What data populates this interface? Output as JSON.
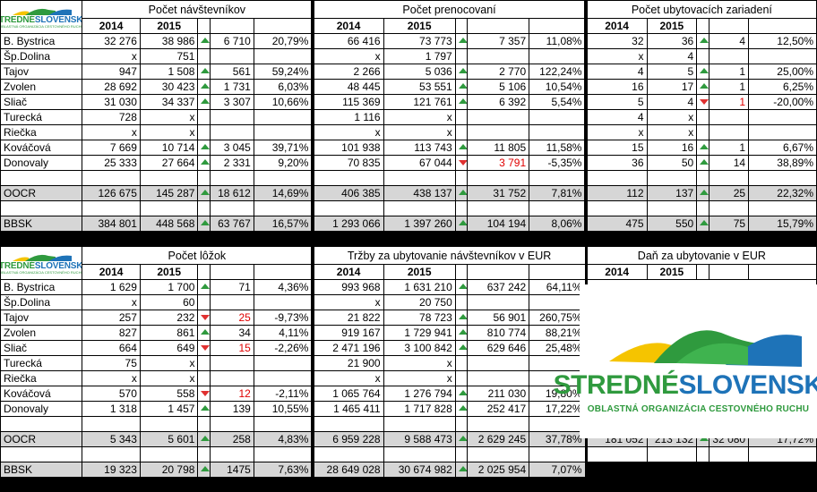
{
  "brand": {
    "word1": "STREDNÉ",
    "word2": "SLOVENSKO",
    "tagline": "OBLASTNÁ ORGANIZÁCIA CESTOVNÉHO RUCHU",
    "colors": {
      "green": "#2f9a3e",
      "blue": "#1e73b8",
      "yellow": "#f5c400",
      "up": "#2f9a3e",
      "down": "#e03030"
    }
  },
  "top": {
    "sections": [
      {
        "title": "Počet návštevníkov",
        "years": [
          "2014",
          "2015"
        ]
      },
      {
        "title": "Počet prenocovaní",
        "years": [
          "2014",
          "2015"
        ]
      },
      {
        "title": "Počet ubytovacích zariadení",
        "years": [
          "2014",
          "2015"
        ]
      }
    ],
    "rows": [
      {
        "label": "B. Bystrica",
        "cells": [
          [
            "32 276",
            "38 986",
            "up",
            "6 710",
            "20,79%"
          ],
          [
            "66 416",
            "73 773",
            "up",
            "7 357",
            "11,08%"
          ],
          [
            "32",
            "36",
            "up",
            "4",
            "12,50%"
          ]
        ]
      },
      {
        "label": "Šp.Dolina",
        "cells": [
          [
            "x",
            "751",
            "",
            "",
            ""
          ],
          [
            "x",
            "1 797",
            "",
            "",
            ""
          ],
          [
            "x",
            "4",
            "",
            "",
            ""
          ]
        ]
      },
      {
        "label": "Tajov",
        "cells": [
          [
            "947",
            "1 508",
            "up",
            "561",
            "59,24%"
          ],
          [
            "2 266",
            "5 036",
            "up",
            "2 770",
            "122,24%"
          ],
          [
            "4",
            "5",
            "up",
            "1",
            "25,00%"
          ]
        ]
      },
      {
        "label": "Zvolen",
        "cells": [
          [
            "28 692",
            "30 423",
            "up",
            "1 731",
            "6,03%"
          ],
          [
            "48 445",
            "53 551",
            "up",
            "5 106",
            "10,54%"
          ],
          [
            "16",
            "17",
            "up",
            "1",
            "6,25%"
          ]
        ]
      },
      {
        "label": "Sliač",
        "cells": [
          [
            "31 030",
            "34 337",
            "up",
            "3 307",
            "10,66%"
          ],
          [
            "115 369",
            "121 761",
            "up",
            "6 392",
            "5,54%"
          ],
          [
            "5",
            "4",
            "down",
            "1",
            "-20,00%"
          ]
        ]
      },
      {
        "label": "Turecká",
        "cells": [
          [
            "728",
            "x",
            "",
            "",
            ""
          ],
          [
            "1 116",
            "x",
            "",
            "",
            ""
          ],
          [
            "4",
            "x",
            "",
            "",
            ""
          ]
        ]
      },
      {
        "label": "Riečka",
        "cells": [
          [
            "x",
            "x",
            "",
            "",
            ""
          ],
          [
            "x",
            "x",
            "",
            "",
            ""
          ],
          [
            "x",
            "x",
            "",
            "",
            ""
          ]
        ]
      },
      {
        "label": "Kováčová",
        "cells": [
          [
            "7 669",
            "10 714",
            "up",
            "3 045",
            "39,71%"
          ],
          [
            "101 938",
            "113 743",
            "up",
            "11 805",
            "11,58%"
          ],
          [
            "15",
            "16",
            "up",
            "1",
            "6,67%"
          ]
        ]
      },
      {
        "label": "Donovaly",
        "cells": [
          [
            "25 333",
            "27 664",
            "up",
            "2 331",
            "9,20%"
          ],
          [
            "70 835",
            "67 044",
            "down",
            "3 791",
            "-5,35%"
          ],
          [
            "36",
            "50",
            "up",
            "14",
            "38,89%"
          ]
        ]
      }
    ],
    "oocr": {
      "label": "OOCR",
      "cells": [
        [
          "126 675",
          "145 287",
          "up",
          "18 612",
          "14,69%"
        ],
        [
          "406 385",
          "438 137",
          "up",
          "31 752",
          "7,81%"
        ],
        [
          "112",
          "137",
          "up",
          "25",
          "22,32%"
        ]
      ]
    },
    "bbsk": {
      "label": "BBSK",
      "cells": [
        [
          "384 801",
          "448 568",
          "up",
          "63 767",
          "16,57%"
        ],
        [
          "1 293 066",
          "1 397 260",
          "up",
          "104 194",
          "8,06%"
        ],
        [
          "475",
          "550",
          "up",
          "75",
          "15,79%"
        ]
      ]
    }
  },
  "bottom": {
    "sections": [
      {
        "title": "Počet lôžok",
        "years": [
          "2014",
          "2015"
        ]
      },
      {
        "title": "Tržby za ubytovanie návštevníkov v EUR",
        "years": [
          "2014",
          "2015"
        ]
      },
      {
        "title": "Daň za ubytovanie v EUR",
        "years": [
          "2014",
          "2015"
        ]
      }
    ],
    "rows": [
      {
        "label": "B. Bystrica",
        "cells": [
          [
            "1 629",
            "1 700",
            "up",
            "71",
            "4,36%"
          ],
          [
            "993 968",
            "1 631 210",
            "up",
            "637 242",
            "64,11%"
          ]
        ]
      },
      {
        "label": "Šp.Dolina",
        "cells": [
          [
            "x",
            "60",
            "",
            "",
            ""
          ],
          [
            "x",
            "20 750",
            "",
            "",
            ""
          ]
        ]
      },
      {
        "label": "Tajov",
        "cells": [
          [
            "257",
            "232",
            "down",
            "25",
            "-9,73%"
          ],
          [
            "21 822",
            "78 723",
            "up",
            "56 901",
            "260,75%"
          ]
        ]
      },
      {
        "label": "Zvolen",
        "cells": [
          [
            "827",
            "861",
            "up",
            "34",
            "4,11%"
          ],
          [
            "919 167",
            "1 729 941",
            "up",
            "810 774",
            "88,21%"
          ]
        ]
      },
      {
        "label": "Sliač",
        "cells": [
          [
            "664",
            "649",
            "down",
            "15",
            "-2,26%"
          ],
          [
            "2 471 196",
            "3 100 842",
            "up",
            "629 646",
            "25,48%"
          ]
        ]
      },
      {
        "label": "Turecká",
        "cells": [
          [
            "75",
            "x",
            "",
            "",
            ""
          ],
          [
            "21 900",
            "x",
            "",
            "",
            ""
          ]
        ]
      },
      {
        "label": "Riečka",
        "cells": [
          [
            "x",
            "x",
            "",
            "",
            ""
          ],
          [
            "x",
            "x",
            "",
            "",
            ""
          ]
        ]
      },
      {
        "label": "Kováčová",
        "cells": [
          [
            "570",
            "558",
            "down",
            "12",
            "-2,11%"
          ],
          [
            "1 065 764",
            "1 276 794",
            "up",
            "211 030",
            "19,80%"
          ]
        ]
      },
      {
        "label": "Donovaly",
        "cells": [
          [
            "1 318",
            "1 457",
            "up",
            "139",
            "10,55%"
          ],
          [
            "1 465 411",
            "1 717 828",
            "up",
            "252 417",
            "17,22%"
          ]
        ]
      }
    ],
    "oocr": {
      "label": "OOCR",
      "cells": [
        [
          "5 343",
          "5 601",
          "up",
          "258",
          "4,83%"
        ],
        [
          "6 959 228",
          "9 588 473",
          "up",
          "2 629 245",
          "37,78%"
        ],
        [
          "181 052",
          "213 132",
          "up",
          "32 080",
          "17,72%"
        ]
      ]
    },
    "bbsk": {
      "label": "BBSK",
      "cells": [
        [
          "19 323",
          "20 798",
          "up",
          "1475",
          "7,63%"
        ],
        [
          "28 649 028",
          "30 674 982",
          "up",
          "2 025 954",
          "7,07%"
        ]
      ]
    }
  }
}
